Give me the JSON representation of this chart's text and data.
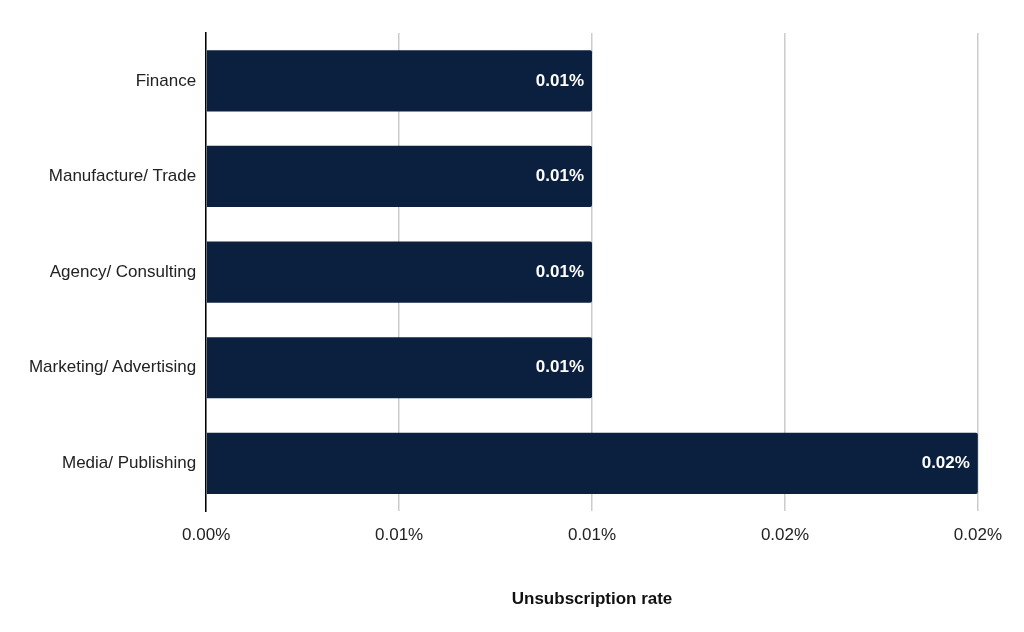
{
  "chart_data": {
    "type": "bar",
    "orientation": "horizontal",
    "xlabel": "Unsubscription rate",
    "categories": [
      "Finance",
      "Manufacture/ Trade",
      "Agency/ Consulting",
      "Marketing/ Advertising",
      "Media/ Publishing"
    ],
    "values": [
      0.01,
      0.01,
      0.01,
      0.01,
      0.02
    ],
    "value_labels": [
      "0.01%",
      "0.01%",
      "0.01%",
      "0.01%",
      "0.02%"
    ],
    "color": "#0b1f3f",
    "xlim": [
      0,
      0.02
    ],
    "xticks": [
      {
        "value": 0,
        "label": "0.00%"
      },
      {
        "value": 0.005,
        "label": "0.01%"
      },
      {
        "value": 0.01,
        "label": "0.01%"
      },
      {
        "value": 0.015,
        "label": "0.02%"
      },
      {
        "value": 0.02,
        "label": "0.02%"
      }
    ],
    "grid": "x",
    "legend": false
  }
}
